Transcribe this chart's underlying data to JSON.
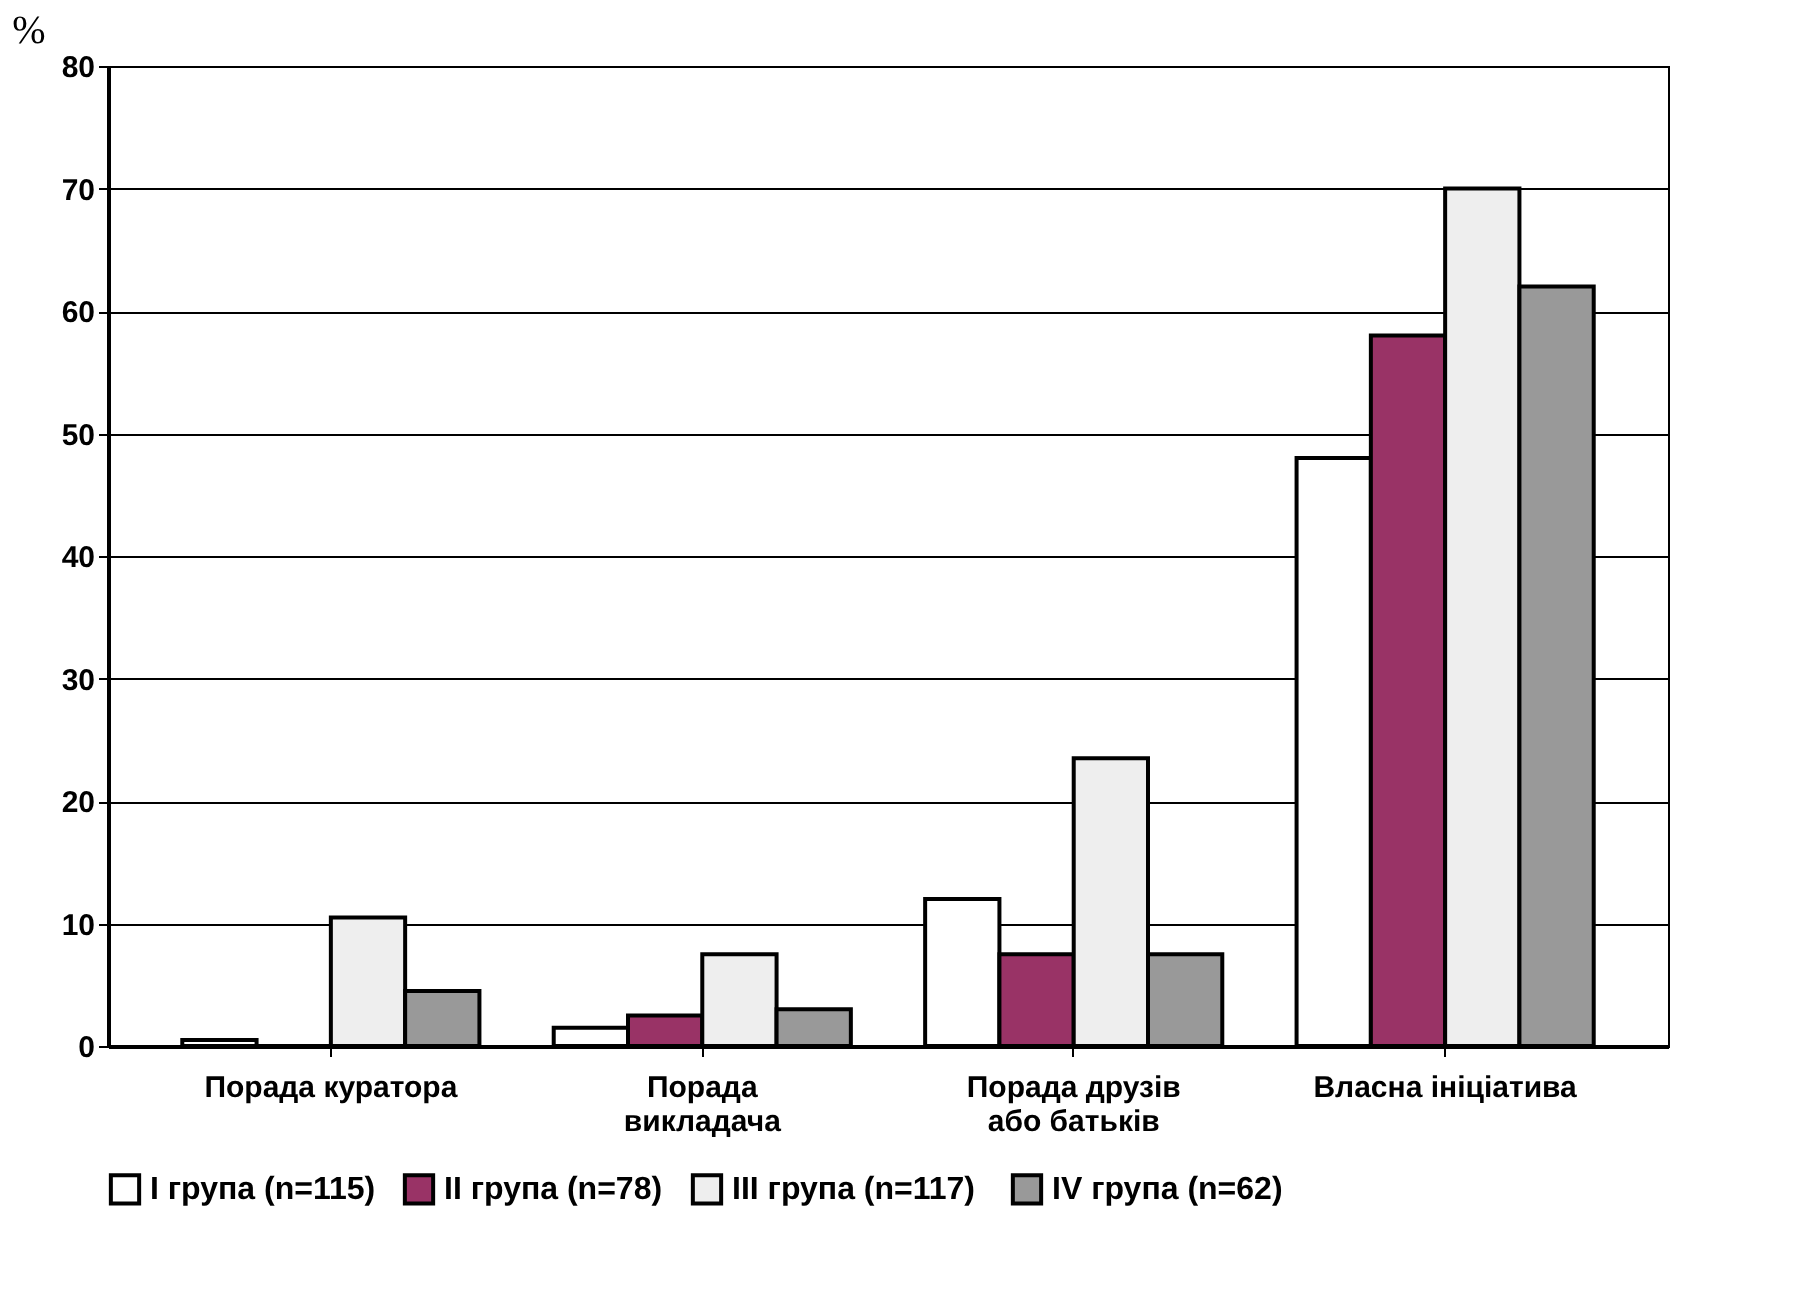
{
  "chart_data": {
    "type": "bar",
    "ylabel": "%",
    "categories": [
      "Порада куратора",
      "Порада\nвикладача",
      "Порада друзів\nабо батьків",
      "Власна ініціатива"
    ],
    "series": [
      {
        "name": "I група (n=115)",
        "color": "#ffffff",
        "values": [
          0.5,
          1.5,
          12,
          48
        ]
      },
      {
        "name": "II група (n=78)",
        "color": "#993366",
        "values": [
          0,
          2.5,
          7.5,
          58
        ]
      },
      {
        "name": "III група  (n=117)",
        "color": "#eeeeee",
        "values": [
          10.5,
          7.5,
          23.5,
          70
        ]
      },
      {
        "name": "IV група  (n=62)",
        "color": "#999999",
        "values": [
          4.5,
          3,
          7.5,
          62
        ]
      }
    ],
    "ylim": [
      0,
      80
    ],
    "yticks": [
      0,
      10,
      20,
      30,
      40,
      50,
      60,
      70,
      80
    ],
    "grid": "y",
    "legend": "bottom"
  }
}
